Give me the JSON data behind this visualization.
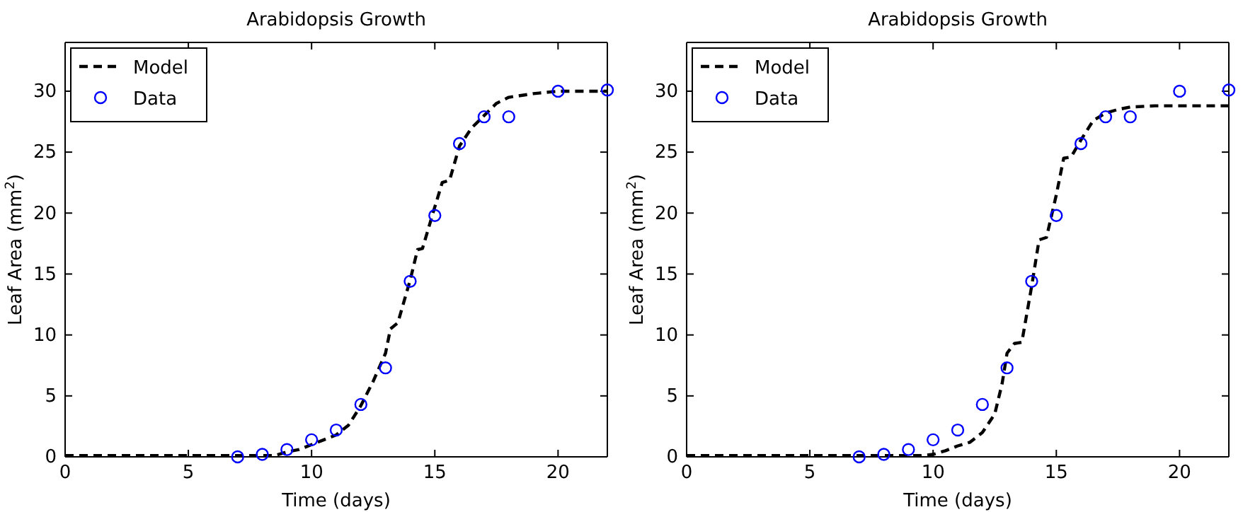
{
  "chart_data": [
    {
      "type": "line",
      "title": "Arabidopsis Growth",
      "xlabel": "Time (days)",
      "ylabel": "Leaf Area (mm$^{2}$)",
      "xlim": [
        0,
        22
      ],
      "ylim": [
        0,
        34
      ],
      "xticks": [
        0,
        5,
        10,
        15,
        20
      ],
      "yticks": [
        0,
        5,
        10,
        15,
        20,
        25,
        30
      ],
      "legend": "top left",
      "grid": false,
      "series": [
        {
          "name": "Model",
          "line_style": "dashed",
          "color": "#000000",
          "x": [
            0,
            8.5,
            9,
            9.5,
            10,
            10.5,
            11,
            11.5,
            12,
            12.5,
            13,
            13.2,
            13.5,
            14,
            14.3,
            14.5,
            15,
            15.3,
            15.6,
            16,
            16.5,
            17,
            17.5,
            18,
            19,
            20,
            22
          ],
          "values": [
            0.1,
            0.1,
            0.4,
            0.6,
            1.0,
            1.4,
            1.8,
            2.6,
            4.2,
            6.2,
            8.5,
            10.5,
            11.0,
            14.5,
            17.0,
            17.1,
            20.5,
            22.5,
            22.7,
            25.5,
            27.0,
            28.0,
            29.0,
            29.5,
            29.8,
            30.0,
            30.0
          ]
        },
        {
          "name": "Data",
          "type": "scatter",
          "marker": "circle",
          "color": "#0000ff",
          "x": [
            7,
            8,
            9,
            10,
            11,
            12,
            13,
            14,
            15,
            16,
            17,
            18,
            20,
            22
          ],
          "values": [
            0,
            0.2,
            0.6,
            1.4,
            2.2,
            4.3,
            7.3,
            14.4,
            19.8,
            25.7,
            27.9,
            27.9,
            30,
            30.1
          ]
        }
      ]
    },
    {
      "type": "line",
      "title": "Arabidopsis Growth",
      "xlabel": "Time (days)",
      "ylabel": "Leaf Area (mm$^{2}$)",
      "xlim": [
        0,
        22
      ],
      "ylim": [
        0,
        34
      ],
      "xticks": [
        0,
        5,
        10,
        15,
        20
      ],
      "yticks": [
        0,
        5,
        10,
        15,
        20,
        25,
        30
      ],
      "legend": "top left",
      "grid": false,
      "series": [
        {
          "name": "Model",
          "line_style": "dashed",
          "color": "#000000",
          "x": [
            0,
            9.5,
            10,
            10.5,
            11,
            11.5,
            12,
            12.5,
            12.8,
            13,
            13.3,
            13.6,
            14,
            14.3,
            14.6,
            15,
            15.3,
            15.6,
            16,
            16.5,
            17,
            17.5,
            18,
            19,
            22
          ],
          "values": [
            0.1,
            0.1,
            0.2,
            0.5,
            0.9,
            1.2,
            2.0,
            3.5,
            6.0,
            8.5,
            9.3,
            9.4,
            14.0,
            17.8,
            18.0,
            21.5,
            24.5,
            24.6,
            26.0,
            27.6,
            28.2,
            28.5,
            28.7,
            28.8,
            28.8
          ]
        },
        {
          "name": "Data",
          "type": "scatter",
          "marker": "circle",
          "color": "#0000ff",
          "x": [
            7,
            8,
            9,
            10,
            11,
            12,
            13,
            14,
            15,
            16,
            17,
            18,
            20,
            22
          ],
          "values": [
            0,
            0.2,
            0.6,
            1.4,
            2.2,
            4.3,
            7.3,
            14.4,
            19.8,
            25.7,
            27.9,
            27.9,
            30,
            30.1
          ]
        }
      ]
    }
  ]
}
